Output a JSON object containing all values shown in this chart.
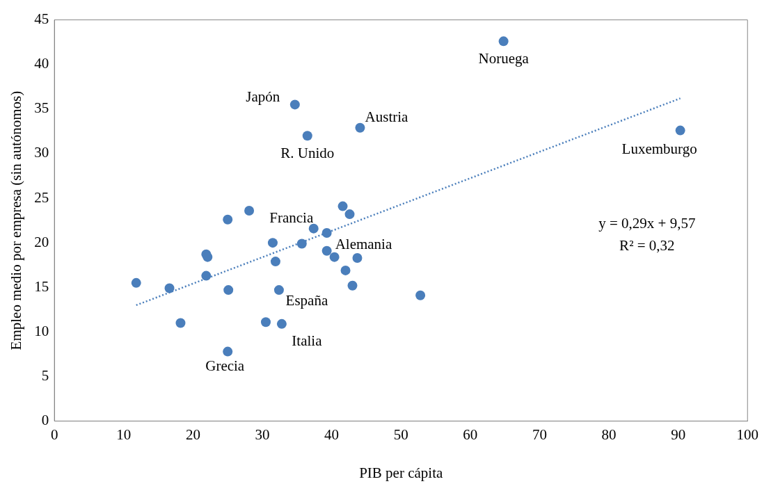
{
  "chart_data": {
    "type": "scatter",
    "xlabel": "PIB per cápita",
    "ylabel": "Empleo medio por empresa (sin autónomos)",
    "xlim": [
      0,
      100
    ],
    "xticks": [
      0,
      10,
      20,
      30,
      40,
      50,
      60,
      70,
      80,
      90,
      100
    ],
    "ylim": [
      0,
      45
    ],
    "yticks": [
      0,
      5,
      10,
      15,
      20,
      25,
      30,
      35,
      40,
      45
    ],
    "grid": false,
    "legend": false,
    "marker": "circle",
    "series": [
      {
        "type": "scatter",
        "color": "#4a7ebb",
        "x": [
          11.8,
          16.6,
          18.2,
          21.9,
          22.1,
          21.9,
          25.0,
          25.1,
          25.0,
          28.1,
          30.5,
          31.5,
          31.9,
          32.4,
          32.8,
          34.7,
          35.7,
          36.5,
          37.4,
          39.3,
          39.3,
          40.4,
          41.6,
          42.0,
          42.6,
          43.0,
          43.7,
          44.1,
          52.8,
          64.8,
          90.3
        ],
        "values": [
          15.5,
          14.9,
          11.0,
          18.7,
          18.4,
          16.3,
          22.6,
          14.7,
          7.8,
          23.6,
          11.1,
          20.0,
          17.9,
          14.7,
          10.9,
          35.5,
          19.9,
          32.0,
          21.6,
          21.1,
          19.1,
          18.4,
          24.1,
          16.9,
          23.2,
          15.2,
          18.3,
          32.9,
          14.1,
          42.6,
          32.6
        ]
      },
      {
        "type": "line",
        "color": "#4a7ebb",
        "line_style": "dotted",
        "marker": "none",
        "x": [
          11.8,
          90.3
        ],
        "values": [
          13.0,
          36.2
        ]
      }
    ],
    "annotations": [
      {
        "text": "Noruega",
        "x": 64.8,
        "y": 42.6
      },
      {
        "text": "Japón",
        "x": 34.7,
        "y": 35.5
      },
      {
        "text": "Austria",
        "x": 44.1,
        "y": 32.9
      },
      {
        "text": "R. Unido",
        "x": 36.5,
        "y": 32.0
      },
      {
        "text": "Luxemburgo",
        "x": 90.3,
        "y": 32.6
      },
      {
        "text": "Francia",
        "x": 37.4,
        "y": 21.6
      },
      {
        "text": "Alemania",
        "x": 39.3,
        "y": 19.1
      },
      {
        "text": "España",
        "x": 32.4,
        "y": 14.7
      },
      {
        "text": "Italia",
        "x": 32.8,
        "y": 10.9
      },
      {
        "text": "Grecia",
        "x": 25.0,
        "y": 7.8
      },
      "y = 0,29x + 9,57",
      "R² = 0,32"
    ]
  }
}
